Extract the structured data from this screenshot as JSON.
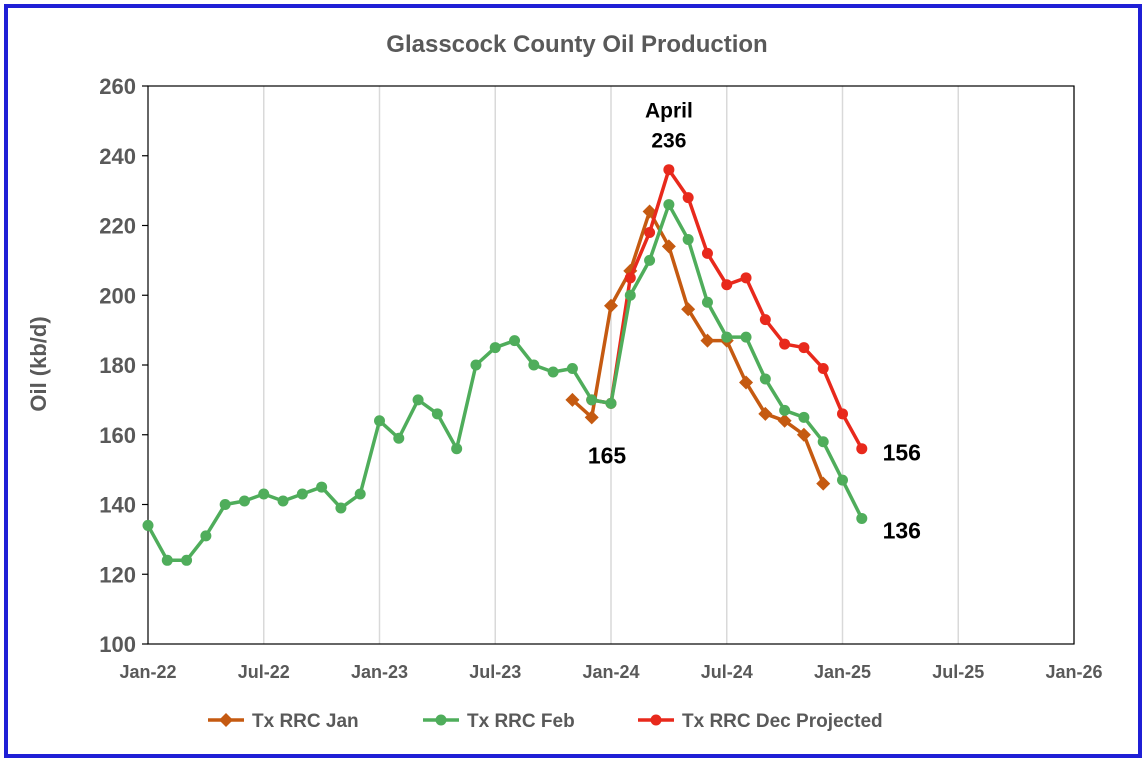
{
  "chart_data": {
    "type": "line",
    "title": "Glasscock County Oil Production",
    "xlabel": "",
    "ylabel": "Oil (kb/d)",
    "ylim": [
      100,
      260
    ],
    "yticks": [
      100,
      120,
      140,
      160,
      180,
      200,
      220,
      240,
      260
    ],
    "xlim": [
      "2022-01",
      "2026-01"
    ],
    "xticks": [
      "Jan-22",
      "Jul-22",
      "Jan-23",
      "Jul-23",
      "Jan-24",
      "Jul-24",
      "Jan-25",
      "Jul-25",
      "Jan-26"
    ],
    "grid": "vertical",
    "legend": "bottom",
    "series": [
      {
        "name": "Tx RRC Jan",
        "color": "#c55a11",
        "marker": "diamond",
        "points": [
          [
            "2023-11",
            170
          ],
          [
            "2023-12",
            165
          ],
          [
            "2024-01",
            197
          ],
          [
            "2024-02",
            207
          ],
          [
            "2024-03",
            224
          ],
          [
            "2024-04",
            214
          ],
          [
            "2024-05",
            196
          ],
          [
            "2024-06",
            187
          ],
          [
            "2024-07",
            187
          ],
          [
            "2024-08",
            175
          ],
          [
            "2024-09",
            166
          ],
          [
            "2024-10",
            164
          ],
          [
            "2024-11",
            160
          ],
          [
            "2024-12",
            146
          ]
        ]
      },
      {
        "name": "Tx RRC Feb",
        "color": "#4fad5b",
        "marker": "circle",
        "points": [
          [
            "2022-01",
            134
          ],
          [
            "2022-02",
            124
          ],
          [
            "2022-03",
            124
          ],
          [
            "2022-04",
            131
          ],
          [
            "2022-05",
            140
          ],
          [
            "2022-06",
            141
          ],
          [
            "2022-07",
            143
          ],
          [
            "2022-08",
            141
          ],
          [
            "2022-09",
            143
          ],
          [
            "2022-10",
            145
          ],
          [
            "2022-11",
            139
          ],
          [
            "2022-12",
            143
          ],
          [
            "2023-01",
            164
          ],
          [
            "2023-02",
            159
          ],
          [
            "2023-03",
            170
          ],
          [
            "2023-04",
            166
          ],
          [
            "2023-05",
            156
          ],
          [
            "2023-06",
            180
          ],
          [
            "2023-07",
            185
          ],
          [
            "2023-08",
            187
          ],
          [
            "2023-09",
            180
          ],
          [
            "2023-10",
            178
          ],
          [
            "2023-11",
            179
          ],
          [
            "2023-12",
            170
          ],
          [
            "2024-01",
            169
          ],
          [
            "2024-02",
            200
          ],
          [
            "2024-03",
            210
          ],
          [
            "2024-04",
            226
          ],
          [
            "2024-05",
            216
          ],
          [
            "2024-06",
            198
          ],
          [
            "2024-07",
            188
          ],
          [
            "2024-08",
            188
          ],
          [
            "2024-09",
            176
          ],
          [
            "2024-10",
            167
          ],
          [
            "2024-11",
            165
          ],
          [
            "2024-12",
            158
          ],
          [
            "2025-01",
            147
          ],
          [
            "2025-02",
            136
          ]
        ]
      },
      {
        "name": "Tx RRC Dec Projected",
        "color": "#e8291c",
        "marker": "circle",
        "points": [
          [
            "2023-12",
            170
          ],
          [
            "2024-01",
            169
          ],
          [
            "2024-02",
            205
          ],
          [
            "2024-03",
            218
          ],
          [
            "2024-04",
            236
          ],
          [
            "2024-05",
            228
          ],
          [
            "2024-06",
            212
          ],
          [
            "2024-07",
            203
          ],
          [
            "2024-08",
            205
          ],
          [
            "2024-09",
            193
          ],
          [
            "2024-10",
            186
          ],
          [
            "2024-11",
            185
          ],
          [
            "2024-12",
            179
          ],
          [
            "2025-01",
            166
          ],
          [
            "2025-02",
            156
          ]
        ]
      }
    ],
    "annotations": [
      {
        "text": "April",
        "at": [
          "2024-04",
          236
        ]
      },
      {
        "text": "236",
        "at": [
          "2024-04",
          236
        ]
      },
      {
        "text": "165",
        "at": [
          "2024-01",
          165
        ]
      },
      {
        "text": "156",
        "at": [
          "2025-02",
          156
        ]
      },
      {
        "text": "136",
        "at": [
          "2025-02",
          136
        ]
      }
    ]
  },
  "colors": {
    "border": "#1f1fd6",
    "axis": "#000000",
    "grid": "#d9d9d9",
    "text": "#595959"
  }
}
